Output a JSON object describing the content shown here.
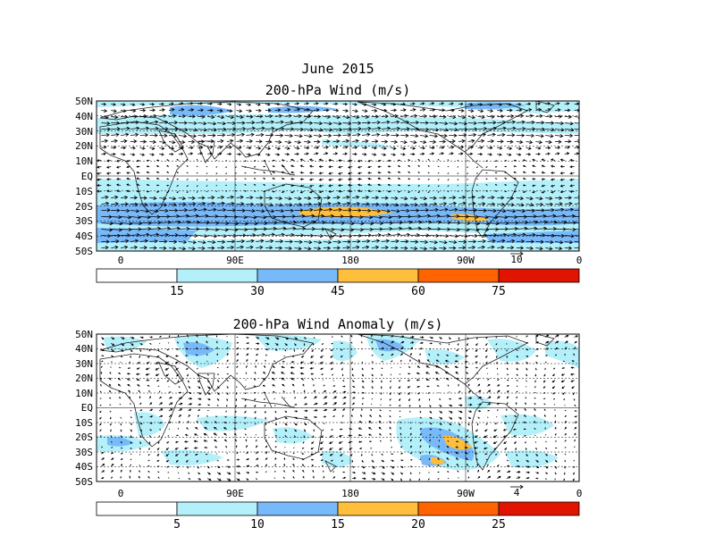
{
  "title": "June 2015",
  "palette": {
    "c0": "#ffffff",
    "c1": "#b4f0fa",
    "c2": "#78b9fa",
    "c3": "#ffbe3c",
    "c4": "#ff6400",
    "c5": "#e11400",
    "frame": "#000000",
    "coast": "#222222"
  },
  "panels": [
    {
      "title": "200-hPa Wind (m/s)",
      "lat_labels": [
        "50N",
        "40N",
        "30N",
        "20N",
        "10N",
        "EQ",
        "10S",
        "20S",
        "30S",
        "40S",
        "50S"
      ],
      "lon_labels": [
        "0",
        "90E",
        "180",
        "90W",
        "0"
      ],
      "ref_vector": "10",
      "colorbar_levels": [
        "15",
        "30",
        "45",
        "60",
        "75"
      ]
    },
    {
      "title": "200-hPa Wind Anomaly (m/s)",
      "lat_labels": [
        "50N",
        "40N",
        "30N",
        "20N",
        "10N",
        "EQ",
        "10S",
        "20S",
        "30S",
        "40S",
        "50S"
      ],
      "lon_labels": [
        "0",
        "90E",
        "180",
        "90W",
        "0"
      ],
      "ref_vector": "4",
      "colorbar_levels": [
        "5",
        "10",
        "15",
        "20",
        "25"
      ]
    }
  ]
}
